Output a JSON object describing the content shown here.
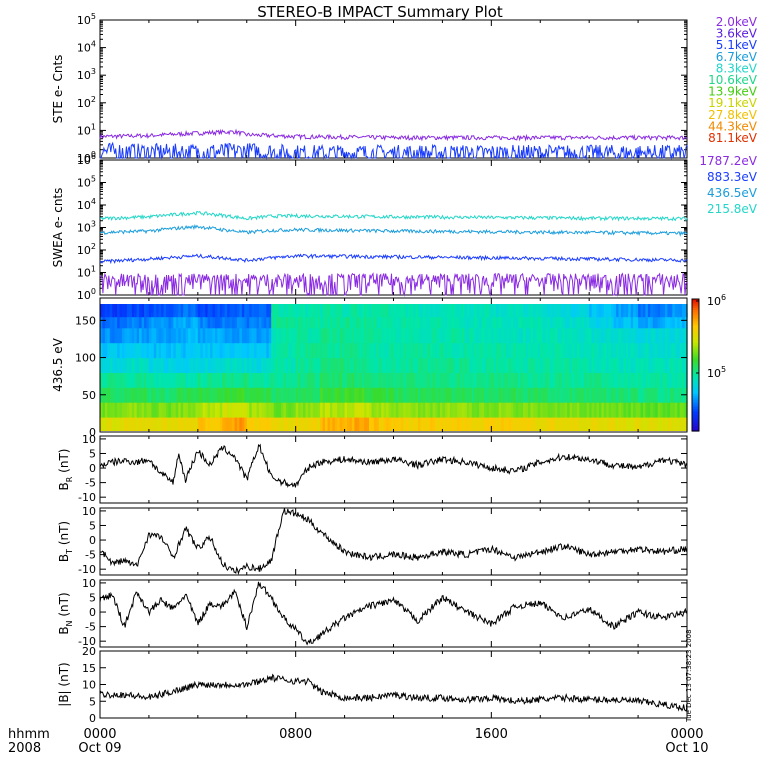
{
  "title": "STEREO-B IMPACT Summary Plot",
  "timestamp_note": "Tue Dec 13 07:38:23 2008",
  "x_axis": {
    "label_line1": "hhmm",
    "label_line2": "2008",
    "ticks": [
      {
        "hour": 0,
        "line1": "0000",
        "line2": "Oct 09"
      },
      {
        "hour": 8,
        "line1": "0800",
        "line2": ""
      },
      {
        "hour": 16,
        "line1": "1600",
        "line2": ""
      },
      {
        "hour": 24,
        "line1": "0000",
        "line2": "Oct 10"
      }
    ],
    "range_hours": [
      0,
      24
    ]
  },
  "legend_ste": [
    {
      "label": "2.0keV",
      "color": "#8a2be2"
    },
    {
      "label": "3.6keV",
      "color": "#5a1ee0"
    },
    {
      "label": "5.1keV",
      "color": "#1a3cff"
    },
    {
      "label": "6.7keV",
      "color": "#1b9ddb"
    },
    {
      "label": "8.3keV",
      "color": "#22d6c8"
    },
    {
      "label": "10.6keV",
      "color": "#1ed68a"
    },
    {
      "label": "13.9keV",
      "color": "#44cc11"
    },
    {
      "label": "19.1keV",
      "color": "#c8d400"
    },
    {
      "label": "27.8keV",
      "color": "#f0c000"
    },
    {
      "label": "44.3keV",
      "color": "#f08a00"
    },
    {
      "label": "81.1keV",
      "color": "#e03000"
    }
  ],
  "legend_swea": [
    {
      "label": "1787.2eV",
      "color": "#8a2be2"
    },
    {
      "label": "883.3eV",
      "color": "#1a3cff"
    },
    {
      "label": "436.5eV",
      "color": "#1b9ddb"
    },
    {
      "label": "215.8eV",
      "color": "#22d6c8"
    }
  ],
  "chart_data": [
    {
      "type": "line",
      "ylabel": "STE e- Cnts",
      "yscale": "log",
      "ylim": [
        1,
        100000
      ],
      "yticks": [
        "10^0",
        "10^1",
        "10^2",
        "10^3",
        "10^4",
        "10^5"
      ],
      "series": [
        {
          "name": "2.0keV",
          "color": "#8a2be2",
          "x": [
            0,
            2,
            4,
            5.5,
            6,
            8,
            12,
            16,
            20,
            24
          ],
          "y": [
            6,
            6.5,
            8,
            9,
            7,
            6,
            5.5,
            5.5,
            5.5,
            5.5
          ]
        },
        {
          "name": "3.6keV",
          "color": "#1a3cff",
          "x": [
            0,
            2,
            4,
            6,
            8,
            12,
            16,
            20,
            24
          ],
          "y": [
            1.2,
            1.1,
            1.1,
            1.2,
            1.0,
            1.0,
            1.0,
            1.0,
            1.0
          ]
        }
      ]
    },
    {
      "type": "line",
      "ylabel": "SWEA e- cnts",
      "yscale": "log",
      "ylim": [
        1,
        1000000
      ],
      "yticks": [
        "10^0",
        "10^1",
        "10^2",
        "10^3",
        "10^4",
        "10^5",
        "10^6"
      ],
      "series": [
        {
          "name": "215.8eV",
          "color": "#22d6c8",
          "x": [
            0,
            2,
            4,
            5,
            6,
            7,
            8,
            12,
            16,
            20,
            24
          ],
          "y": [
            2500,
            3000,
            4500,
            3500,
            2500,
            3200,
            3300,
            3000,
            2800,
            2600,
            2500
          ]
        },
        {
          "name": "436.5eV",
          "color": "#1b9ddb",
          "x": [
            0,
            2,
            4,
            5,
            6,
            7,
            8,
            12,
            16,
            20,
            24
          ],
          "y": [
            600,
            700,
            1100,
            800,
            600,
            750,
            800,
            700,
            650,
            600,
            550
          ]
        },
        {
          "name": "883.3eV",
          "color": "#1a3cff",
          "x": [
            0,
            2,
            4,
            5,
            6,
            7,
            8,
            12,
            16,
            20,
            24
          ],
          "y": [
            30,
            40,
            55,
            45,
            35,
            45,
            55,
            50,
            45,
            40,
            35
          ]
        },
        {
          "name": "1787.2eV",
          "color": "#8a2be2",
          "x": [
            0,
            6,
            12,
            18,
            24
          ],
          "y": [
            3,
            3,
            3,
            3,
            3
          ]
        }
      ]
    },
    {
      "type": "heatmap",
      "ylabel": "436.5 eV",
      "ylim": [
        0,
        180
      ],
      "yticks": [
        0,
        50,
        100,
        150
      ],
      "colorbar": {
        "labels": [
          "10^6",
          "10^5"
        ],
        "scale": "log"
      },
      "x_hours": [
        0,
        1,
        2,
        3,
        4,
        5,
        6,
        7,
        8,
        9,
        10,
        11,
        12,
        13,
        14,
        15,
        16,
        17,
        18,
        19,
        20,
        21,
        22,
        23
      ],
      "y_deg": [
        10,
        30,
        50,
        70,
        90,
        110,
        130,
        150,
        165
      ],
      "z": [
        [
          0.72,
          0.75,
          0.74,
          0.74,
          0.8,
          0.86,
          0.78,
          0.74,
          0.76,
          0.82,
          0.84,
          0.8,
          0.78,
          0.79,
          0.78,
          0.77,
          0.78,
          0.76,
          0.75,
          0.74,
          0.74,
          0.73,
          0.72,
          0.72
        ],
        [
          0.6,
          0.62,
          0.6,
          0.62,
          0.66,
          0.7,
          0.64,
          0.6,
          0.62,
          0.66,
          0.68,
          0.64,
          0.62,
          0.62,
          0.62,
          0.61,
          0.62,
          0.61,
          0.6,
          0.6,
          0.6,
          0.59,
          0.58,
          0.58
        ],
        [
          0.5,
          0.5,
          0.48,
          0.5,
          0.52,
          0.54,
          0.52,
          0.48,
          0.5,
          0.54,
          0.54,
          0.52,
          0.5,
          0.5,
          0.5,
          0.49,
          0.5,
          0.49,
          0.48,
          0.48,
          0.48,
          0.47,
          0.46,
          0.46
        ],
        [
          0.44,
          0.44,
          0.42,
          0.42,
          0.44,
          0.46,
          0.44,
          0.44,
          0.46,
          0.48,
          0.48,
          0.46,
          0.46,
          0.46,
          0.46,
          0.45,
          0.46,
          0.45,
          0.44,
          0.44,
          0.44,
          0.43,
          0.42,
          0.42
        ],
        [
          0.36,
          0.38,
          0.34,
          0.34,
          0.36,
          0.38,
          0.36,
          0.42,
          0.44,
          0.46,
          0.46,
          0.44,
          0.44,
          0.44,
          0.44,
          0.43,
          0.43,
          0.42,
          0.42,
          0.42,
          0.41,
          0.4,
          0.4,
          0.4
        ],
        [
          0.3,
          0.32,
          0.3,
          0.3,
          0.3,
          0.32,
          0.3,
          0.42,
          0.44,
          0.44,
          0.44,
          0.43,
          0.43,
          0.43,
          0.42,
          0.42,
          0.42,
          0.41,
          0.41,
          0.4,
          0.4,
          0.39,
          0.38,
          0.38
        ],
        [
          0.24,
          0.26,
          0.26,
          0.28,
          0.26,
          0.26,
          0.26,
          0.42,
          0.43,
          0.44,
          0.44,
          0.43,
          0.42,
          0.42,
          0.42,
          0.41,
          0.41,
          0.4,
          0.4,
          0.39,
          0.38,
          0.37,
          0.36,
          0.36
        ],
        [
          0.2,
          0.22,
          0.24,
          0.26,
          0.22,
          0.22,
          0.22,
          0.44,
          0.44,
          0.44,
          0.44,
          0.43,
          0.42,
          0.42,
          0.41,
          0.4,
          0.4,
          0.4,
          0.38,
          0.37,
          0.34,
          0.3,
          0.26,
          0.28
        ],
        [
          0.14,
          0.16,
          0.18,
          0.2,
          0.16,
          0.18,
          0.18,
          0.42,
          0.42,
          0.42,
          0.42,
          0.42,
          0.41,
          0.4,
          0.4,
          0.4,
          0.38,
          0.38,
          0.36,
          0.34,
          0.3,
          0.26,
          0.22,
          0.24
        ]
      ]
    },
    {
      "type": "line",
      "ylabel": "B_R (nT)",
      "ylim": [
        -12,
        11
      ],
      "yticks": [
        10,
        5,
        0,
        -5,
        -10
      ],
      "series": [
        {
          "name": "",
          "color": "#000000",
          "x": [
            0,
            0.5,
            1,
            1.5,
            2,
            2.5,
            3,
            3.2,
            3.5,
            4,
            4.5,
            5,
            5.5,
            6,
            6.5,
            7,
            7.5,
            8,
            8.5,
            9,
            10,
            11,
            12,
            13,
            14,
            15,
            16,
            17,
            18,
            19,
            20,
            21,
            22,
            23,
            24
          ],
          "y": [
            1,
            2,
            2.5,
            2,
            3,
            -2,
            -5,
            5,
            -4,
            6,
            1,
            7,
            4,
            -4,
            8,
            -3,
            -5,
            -6,
            0,
            2,
            3,
            2,
            3,
            1,
            3,
            2,
            0,
            -1,
            2,
            4,
            3,
            1,
            0,
            3,
            1
          ]
        }
      ]
    },
    {
      "type": "line",
      "ylabel": "B_T (nT)",
      "ylim": [
        -12,
        11
      ],
      "yticks": [
        10,
        5,
        0,
        -5,
        -10
      ],
      "series": [
        {
          "name": "",
          "color": "#000000",
          "x": [
            0,
            0.5,
            1,
            1.5,
            2,
            2.5,
            3,
            3.5,
            4,
            4.5,
            5,
            5.5,
            6,
            6.5,
            7,
            7.5,
            8,
            8.5,
            9,
            10,
            11,
            12,
            13,
            14,
            15,
            16,
            17,
            18,
            19,
            20,
            21,
            22,
            23,
            24
          ],
          "y": [
            -3,
            -8,
            -7,
            -9,
            2,
            1,
            -6,
            4,
            -3,
            1,
            -8,
            -11,
            -9,
            -10,
            -7,
            10,
            9,
            7,
            3,
            -4,
            -6,
            -5,
            -6,
            -4,
            -5,
            -3,
            -6,
            -4,
            -2,
            -5,
            -4,
            -3,
            -4,
            -3
          ]
        }
      ]
    },
    {
      "type": "line",
      "ylabel": "B_N (nT)",
      "ylim": [
        -12,
        11
      ],
      "yticks": [
        10,
        5,
        0,
        -5,
        -10
      ],
      "series": [
        {
          "name": "",
          "color": "#000000",
          "x": [
            0,
            0.5,
            1,
            1.5,
            2,
            2.5,
            3,
            3.5,
            4,
            4.5,
            5,
            5.5,
            6,
            6.5,
            7,
            7.5,
            8,
            8.5,
            9,
            9.5,
            10,
            11,
            12,
            13,
            14,
            15,
            16,
            17,
            18,
            19,
            20,
            21,
            22,
            23,
            24
          ],
          "y": [
            4,
            6,
            -5,
            7,
            0,
            4,
            1,
            6,
            -4,
            3,
            2,
            7,
            -5,
            10,
            5,
            -2,
            -6,
            -11,
            -8,
            -5,
            -2,
            2,
            4,
            -3,
            5,
            0,
            -4,
            2,
            3,
            -2,
            1,
            -5,
            0,
            -2,
            0
          ]
        }
      ]
    },
    {
      "type": "line",
      "ylabel": "|B| (nT)",
      "ylim": [
        0,
        20
      ],
      "yticks": [
        20,
        15,
        10,
        5,
        0
      ],
      "series": [
        {
          "name": "",
          "color": "#000000",
          "x": [
            0,
            1,
            2,
            3,
            4,
            5,
            6,
            7,
            8,
            8.5,
            9,
            9.5,
            10,
            11,
            12,
            13,
            14,
            15,
            16,
            17,
            18,
            19,
            20,
            21,
            22,
            23,
            24
          ],
          "y": [
            7,
            7,
            6,
            8,
            10,
            10,
            10,
            12,
            11,
            11,
            8,
            7,
            6,
            6,
            7,
            6,
            6,
            5.5,
            6,
            5,
            5.5,
            6,
            5.5,
            5.5,
            5,
            4,
            3
          ]
        }
      ]
    }
  ]
}
